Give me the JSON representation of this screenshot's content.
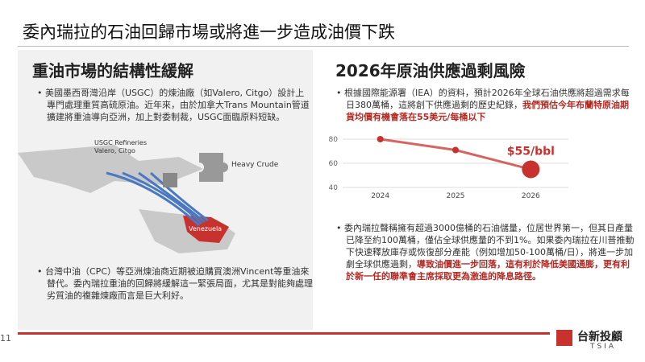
{
  "header": {
    "title": "委內瑞拉的石油回歸市場或將進一步造成油價下跌"
  },
  "left": {
    "title": "重油市場的結構性緩解",
    "bullets": [
      {
        "text": "美國墨西哥灣沿岸（USGC）的煉油廠（如Valero, Citgo）設計上專門處理重質高硫原油。近年來，由於加拿大Trans Mountain管道擴建將重油導向亞洲，加上對委制裁，USGC面臨原料短缺。"
      },
      {
        "text": "台灣中油（CPC）等亞洲煉油商近期被迫購買澳洲Vincent等重油來替代。委內瑞拉重油的回歸將緩解這一緊張局面，尤其是對能夠處理劣質油的複雜煉廠而言是巨大利好。"
      }
    ],
    "map": {
      "refineries": "USGC Refineries",
      "companies": "Valero, Citgo",
      "crude": "Heavy Crude",
      "country": "Venezuela"
    }
  },
  "right": {
    "title": "2026年原油供應過剩風險",
    "bullets": [
      {
        "text": "根據國際能源署（IEA）的資料，預計2026年全球石油供應將超過需求每日380萬桶，這將創下供應過剩的歷史紀錄，",
        "highlight": "我們預估今年布蘭特原油期貨均價有機會落在55美元/每桶以下"
      },
      {
        "text": "委內瑞拉聲稱擁有超過3000億桶的石油儲量，位居世界第一，但其日產量已降至約100萬桶，僅佔全球供應量的不到1%。如果委內瑞拉在川普推動下快速釋放庫存或恢復部分產能（例如增加50-100萬桶/日），將進一步加劇全球供應過剩，",
        "highlight": "導致油價進一步回落，這有利於降低美國通膨，更有利於新一任的聯準會主席採取更為激進的降息路徑。"
      }
    ]
  },
  "chart_data": {
    "type": "line",
    "categories": [
      "2024",
      "2025",
      "2026"
    ],
    "values": [
      80,
      71,
      55
    ],
    "value_labels": [
      null,
      null,
      "$55/bbl"
    ],
    "color": "#c8322e",
    "ylim": [
      40,
      86
    ],
    "yticks": [
      40,
      60,
      80
    ],
    "grid": true
  },
  "footer": {
    "page": "11",
    "logo": "台新投顧",
    "logo_sub": "TSIA"
  }
}
